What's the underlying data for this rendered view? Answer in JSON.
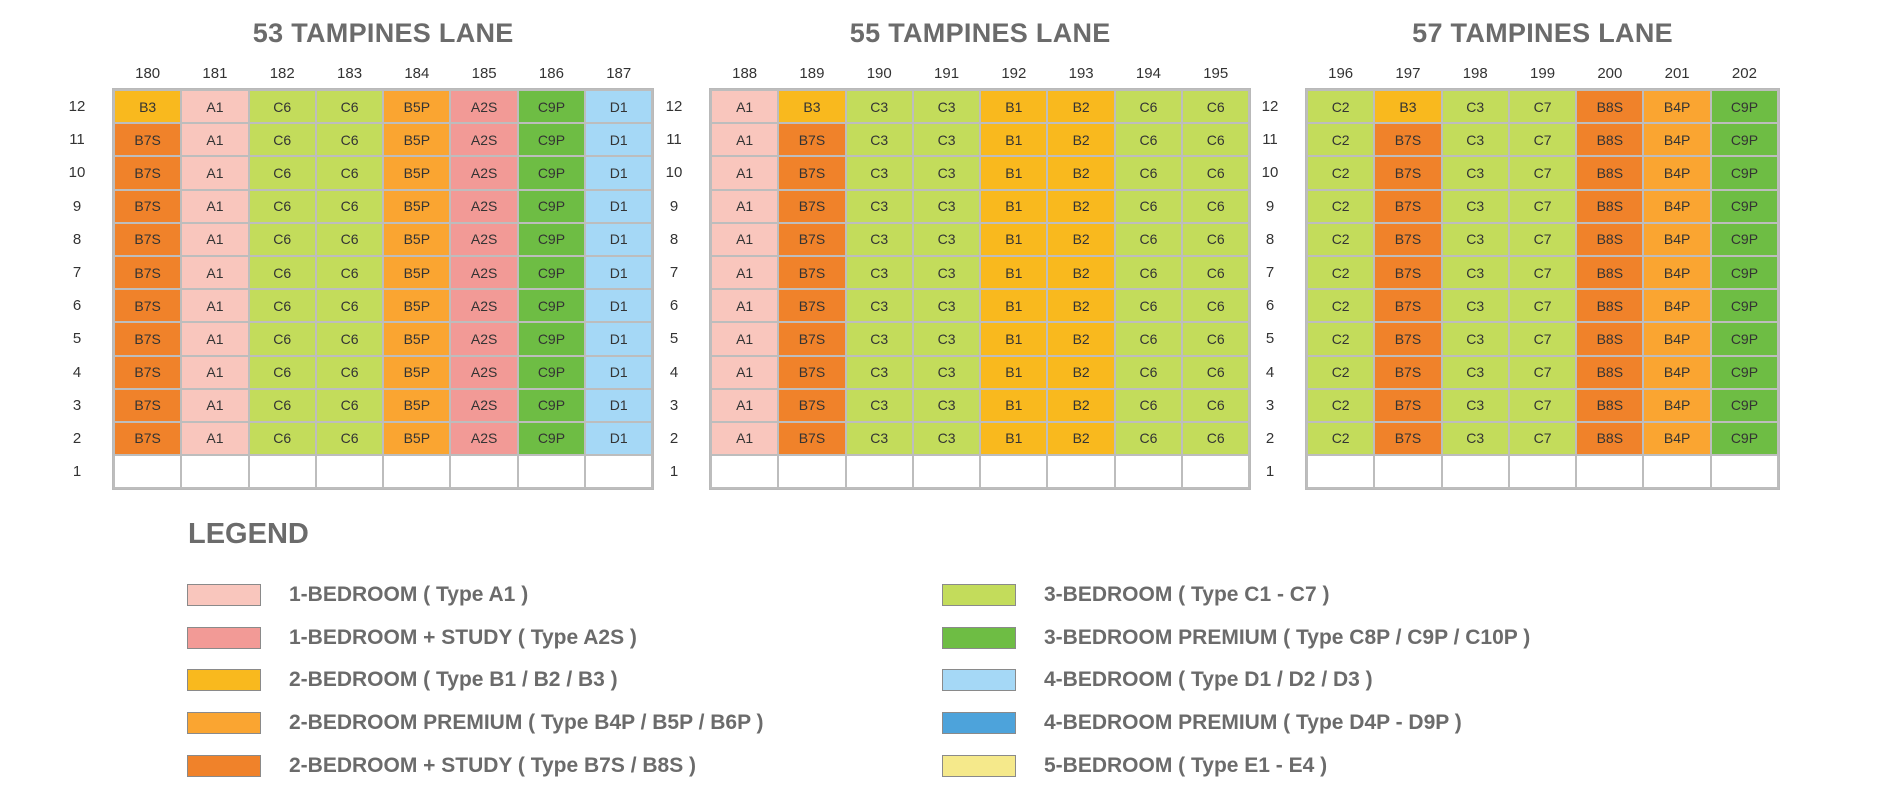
{
  "colors": {
    "A1": "#f9c6bd",
    "A2S": "#f29a96",
    "B1": "#f9b91e",
    "B2": "#f9b91e",
    "B3": "#f9b91e",
    "B4P": "#faa531",
    "B5P": "#faa531",
    "B7S": "#f0822a",
    "B8S": "#f0822a",
    "C2": "#c3dc5b",
    "C3": "#c3dc5b",
    "C6": "#c3dc5b",
    "C7": "#c3dc5b",
    "C9P": "#6ebd44",
    "D1": "#a5d8f6",
    "D4P": "#4da3db",
    "E": "#f5e98b"
  },
  "floors": [
    "12",
    "11",
    "10",
    "9",
    "8",
    "7",
    "6",
    "5",
    "4",
    "3",
    "2",
    "1"
  ],
  "blocks": [
    {
      "title": "53 TAMPINES LANE",
      "units": [
        "180",
        "181",
        "182",
        "183",
        "184",
        "185",
        "186",
        "187"
      ],
      "stack_types": [
        "B7S",
        "A1",
        "C6",
        "C6",
        "B5P",
        "A2S",
        "C9P",
        "D1"
      ],
      "top_floor_types": [
        "B3",
        "A1",
        "C6",
        "C6",
        "B5P",
        "A2S",
        "C9P",
        "D1"
      ]
    },
    {
      "title": "55 TAMPINES LANE",
      "units": [
        "188",
        "189",
        "190",
        "191",
        "192",
        "193",
        "194",
        "195"
      ],
      "stack_types": [
        "A1",
        "B7S",
        "C3",
        "C3",
        "B1",
        "B2",
        "C6",
        "C6"
      ],
      "top_floor_types": [
        "A1",
        "B3",
        "C3",
        "C3",
        "B1",
        "B2",
        "C6",
        "C6"
      ]
    },
    {
      "title": "57 TAMPINES LANE",
      "units": [
        "196",
        "197",
        "198",
        "199",
        "200",
        "201",
        "202"
      ],
      "stack_types": [
        "C2",
        "B7S",
        "C3",
        "C7",
        "B8S",
        "B4P",
        "C9P"
      ],
      "top_floor_types": [
        "C2",
        "B3",
        "C3",
        "C7",
        "B8S",
        "B4P",
        "C9P"
      ]
    }
  ],
  "legend": {
    "title": "LEGEND",
    "items": [
      {
        "label": "1-BEDROOM ( Type A1 )",
        "color": "#f9c6bd"
      },
      {
        "label": "1-BEDROOM + STUDY ( Type A2S )",
        "color": "#f29a96"
      },
      {
        "label": "2-BEDROOM ( Type B1 / B2 / B3 )",
        "color": "#f9b91e"
      },
      {
        "label": "2-BEDROOM PREMIUM ( Type B4P / B5P / B6P )",
        "color": "#faa531"
      },
      {
        "label": "2-BEDROOM + STUDY ( Type B7S / B8S )",
        "color": "#f0822a"
      },
      {
        "label": "3-BEDROOM ( Type C1 - C7 )",
        "color": "#c3dc5b"
      },
      {
        "label": "3-BEDROOM PREMIUM ( Type C8P / C9P / C10P )",
        "color": "#6ebd44"
      },
      {
        "label": "4-BEDROOM ( Type D1 / D2 / D3 )",
        "color": "#a5d8f6"
      },
      {
        "label": "4-BEDROOM PREMIUM ( Type D4P - D9P )",
        "color": "#4da3db"
      },
      {
        "label": "5-BEDROOM ( Type E1 - E4 )",
        "color": "#f5e98b"
      }
    ]
  }
}
